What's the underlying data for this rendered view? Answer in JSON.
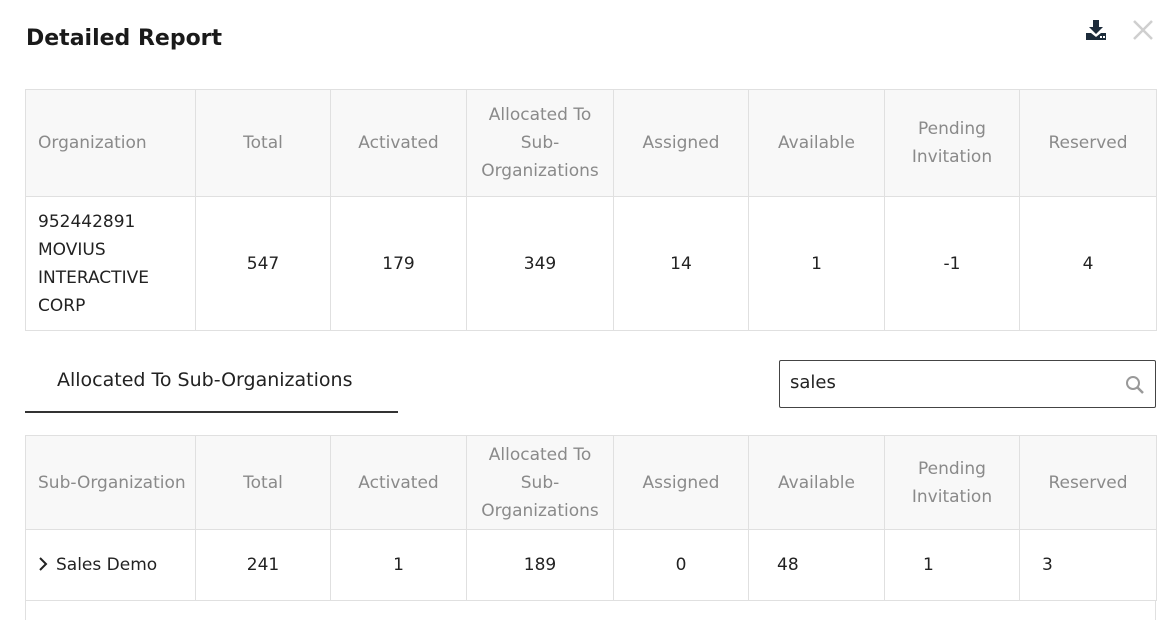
{
  "title": "Detailed Report",
  "icons": {
    "download": "download-icon",
    "close": "close-icon",
    "search": "search-icon",
    "expand": "chevron-right-icon"
  },
  "summary": {
    "headers": [
      "Organization",
      "Total",
      "Activated",
      "Allocated To Sub-Organizations",
      "Assigned",
      "Available",
      "Pending Invitation",
      "Reserved"
    ],
    "row": [
      "952442891 MOVIUS INTERACTIVE CORP",
      "547",
      "179",
      "349",
      "14",
      "1",
      "-1",
      "4"
    ]
  },
  "tab": {
    "label": "Allocated To Sub-Organizations"
  },
  "search": {
    "value": "sales"
  },
  "sub": {
    "headers": [
      "Sub-Organization",
      "Total",
      "Activated",
      "Allocated To Sub-Organizations",
      "Assigned",
      "Available",
      "Pending Invitation",
      "Reserved"
    ],
    "rows": [
      [
        "Sales Demo",
        "241",
        "1",
        "189",
        "0",
        "48",
        "1",
        "3"
      ]
    ]
  }
}
